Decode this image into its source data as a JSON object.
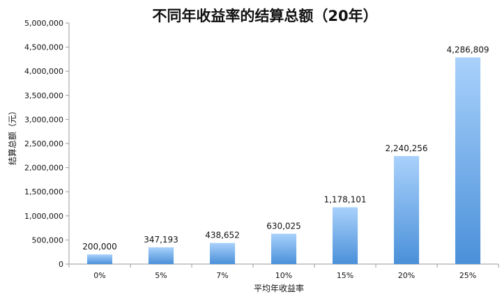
{
  "chart_data": {
    "type": "bar",
    "title": "不同年收益率的结算总额（20年）",
    "xlabel": "平均年收益率",
    "ylabel": "结算总额（元）",
    "categories": [
      "0%",
      "5%",
      "7%",
      "10%",
      "15%",
      "20%",
      "25%"
    ],
    "values": [
      200000,
      347193,
      438652,
      630025,
      1178101,
      2240256,
      4286809
    ],
    "value_labels": [
      "200,000",
      "347,193",
      "438,652",
      "630,025",
      "1,178,101",
      "2,240,256",
      "4,286,809"
    ],
    "ylim": [
      0,
      5000000
    ],
    "yticks": [
      0,
      500000,
      1000000,
      1500000,
      2000000,
      2500000,
      3000000,
      3500000,
      4000000,
      4500000,
      5000000
    ],
    "ytick_labels": [
      "0",
      "500,000",
      "1,000,000",
      "1,500,000",
      "2,000,000",
      "2,500,000",
      "3,000,000",
      "3,500,000",
      "4,000,000",
      "4,500,000",
      "5,000,000"
    ],
    "grid": false,
    "legend": "none",
    "colors": {
      "bar_top": "#a9d1fb",
      "bar_bottom": "#4a90d9",
      "axis": "#9a9a9a"
    }
  }
}
